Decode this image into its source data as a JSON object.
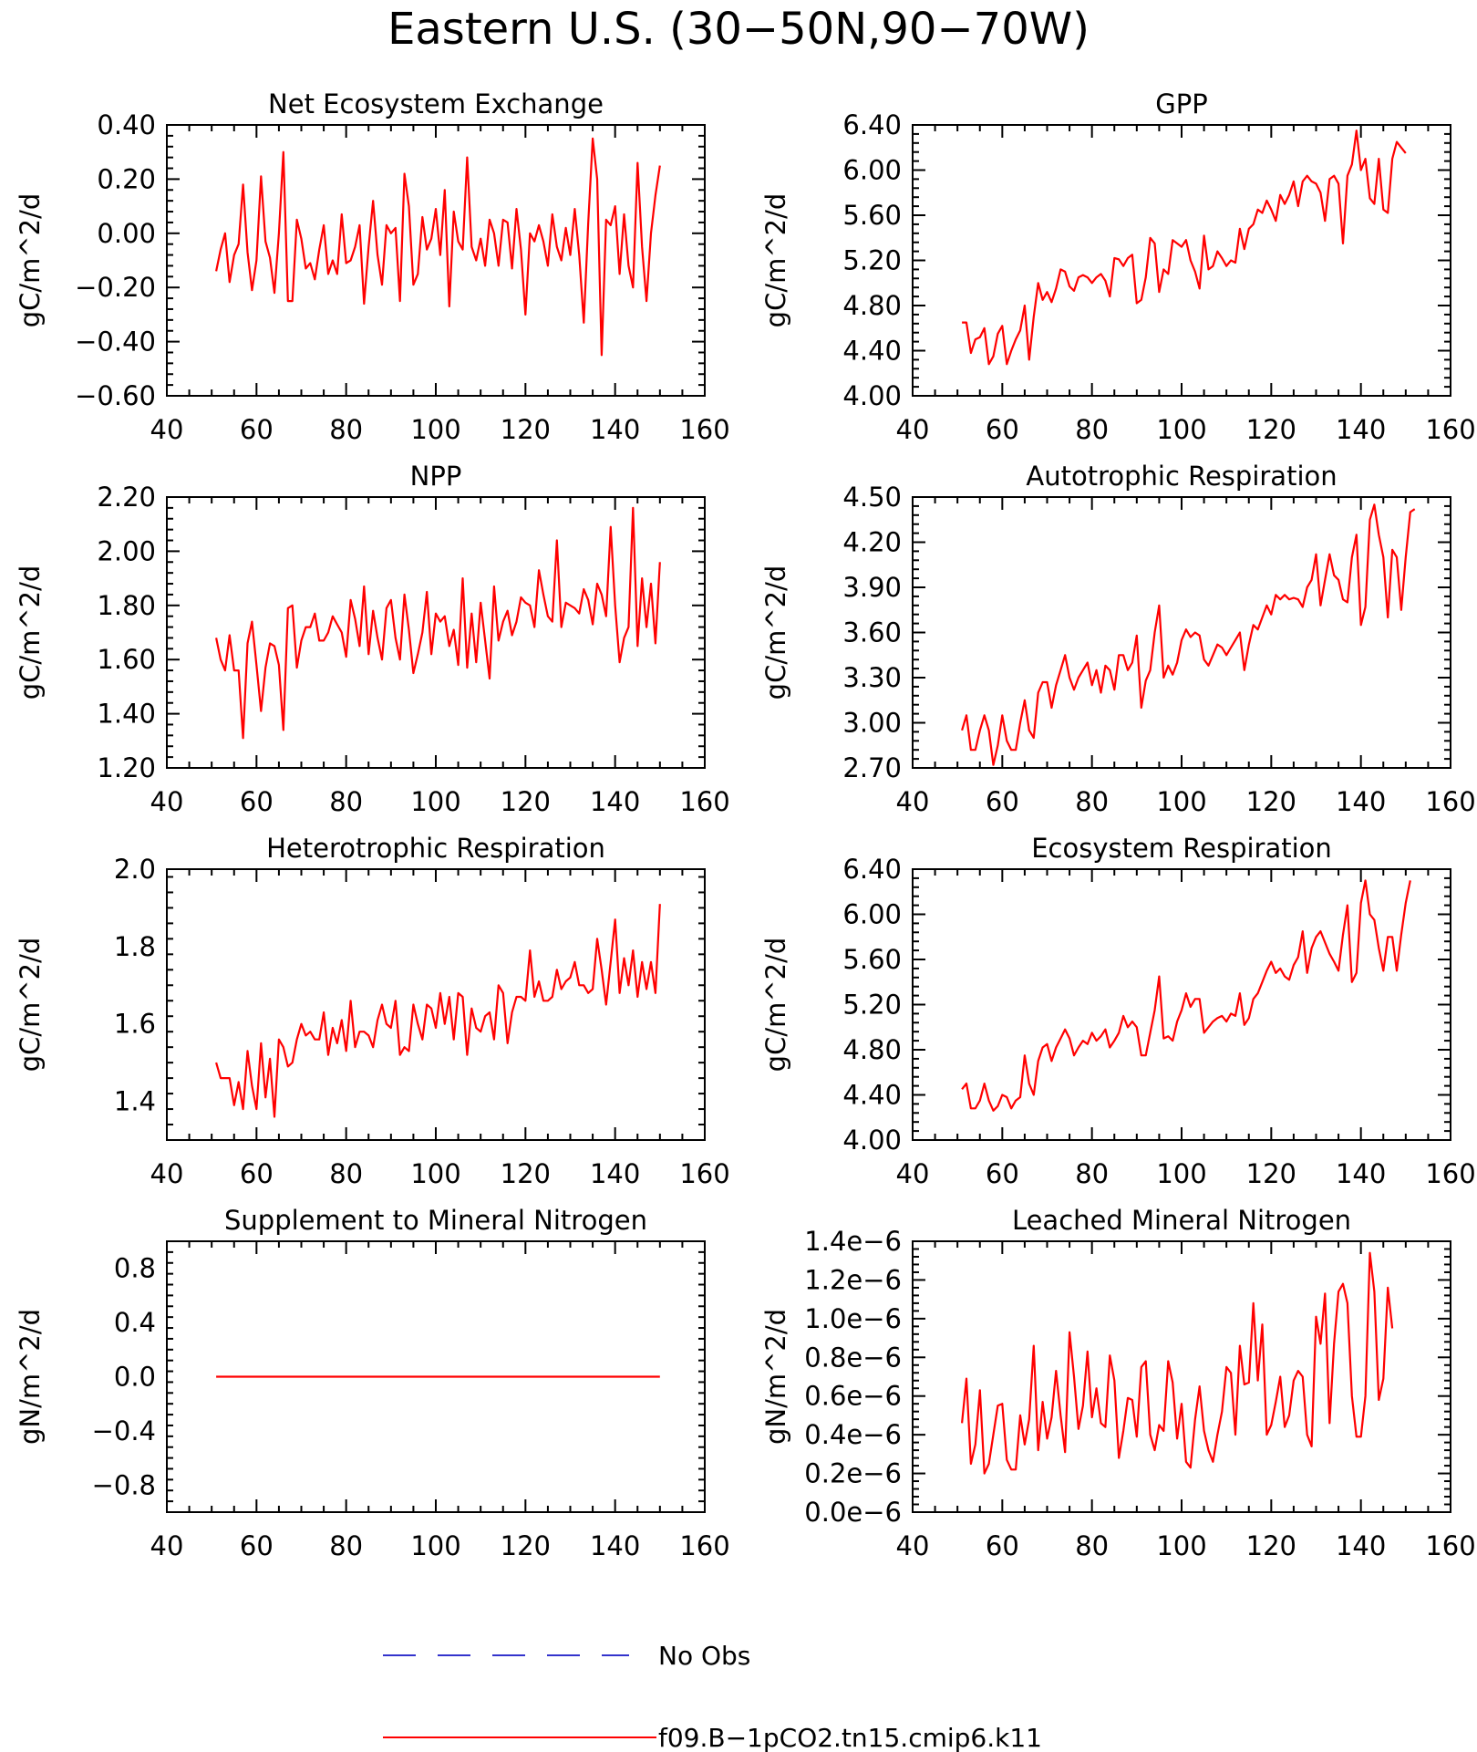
{
  "page": {
    "title": "Eastern U.S. (30-50N,90-70W)"
  },
  "colors": {
    "model_line": "#ff0000",
    "obs_line": "#3333cc",
    "axes": "#000000"
  },
  "legend": {
    "placement": "bottom-center",
    "entries": [
      {
        "label": "No Obs",
        "style": "dashed",
        "color": "#3333cc"
      },
      {
        "label": "f09.B-1pCO2.tn15.cmip6.k11",
        "style": "solid",
        "color": "#ff0000"
      }
    ]
  },
  "chart_data": [
    {
      "type": "line",
      "title": "Net Ecosystem Exchange",
      "ylabel": "gC/m^2/d",
      "xlim": [
        40,
        160
      ],
      "ylim": [
        -0.6,
        0.4
      ],
      "xticks": [
        "40",
        "60",
        "80",
        "100",
        "120",
        "140",
        "160"
      ],
      "yticks": [
        "-0.60",
        "-0.40",
        "-0.20",
        "0.00",
        "0.20",
        "0.40"
      ],
      "series": [
        {
          "x_start": 51,
          "x_step": 1,
          "values": [
            -0.14,
            -0.06,
            0.0,
            -0.18,
            -0.08,
            -0.04,
            0.18,
            -0.07,
            -0.21,
            -0.1,
            0.21,
            -0.03,
            -0.09,
            -0.22,
            0.0,
            0.3,
            -0.25,
            -0.25,
            0.05,
            -0.02,
            -0.13,
            -0.11,
            -0.17,
            -0.06,
            0.03,
            -0.15,
            -0.1,
            -0.15,
            0.07,
            -0.11,
            -0.1,
            -0.05,
            0.03,
            -0.26,
            -0.05,
            0.12,
            -0.08,
            -0.19,
            0.03,
            0.0,
            0.02,
            -0.25,
            0.22,
            0.1,
            -0.19,
            -0.15,
            0.06,
            -0.06,
            -0.02,
            0.09,
            -0.08,
            0.16,
            -0.27,
            0.08,
            -0.03,
            -0.06,
            0.28,
            -0.05,
            -0.1,
            -0.02,
            -0.12,
            0.05,
            0.0,
            -0.12,
            0.05,
            0.04,
            -0.13,
            0.09,
            -0.06,
            -0.3,
            0.0,
            -0.03,
            0.03,
            -0.03,
            -0.12,
            0.07,
            -0.05,
            -0.1,
            0.02,
            -0.08,
            0.09,
            -0.08,
            -0.33,
            0.04,
            0.35,
            0.2,
            -0.45,
            0.05,
            0.03,
            0.1,
            -0.15,
            0.07,
            -0.12,
            -0.2,
            0.26,
            -0.05,
            -0.25,
            0.0,
            0.14,
            0.25
          ]
        }
      ]
    },
    {
      "type": "line",
      "title": "GPP",
      "ylabel": "gC/m^2/d",
      "xlim": [
        40,
        160
      ],
      "ylim": [
        4.0,
        6.4
      ],
      "xticks": [
        "40",
        "60",
        "80",
        "100",
        "120",
        "140",
        "160"
      ],
      "yticks": [
        "4.00",
        "4.40",
        "4.80",
        "5.20",
        "5.60",
        "6.00",
        "6.40"
      ],
      "series": [
        {
          "x_start": 51,
          "x_step": 1,
          "values": [
            4.65,
            4.65,
            4.38,
            4.5,
            4.52,
            4.6,
            4.28,
            4.35,
            4.55,
            4.62,
            4.28,
            4.4,
            4.5,
            4.58,
            4.8,
            4.32,
            4.7,
            5.0,
            4.85,
            4.92,
            4.83,
            4.95,
            5.12,
            5.1,
            4.97,
            4.93,
            5.05,
            5.07,
            5.05,
            5.0,
            5.05,
            5.08,
            5.02,
            4.88,
            5.22,
            5.21,
            5.15,
            5.22,
            5.25,
            4.82,
            4.85,
            5.05,
            5.4,
            5.35,
            4.92,
            5.12,
            5.08,
            5.38,
            5.35,
            5.32,
            5.38,
            5.2,
            5.1,
            4.95,
            5.42,
            5.12,
            5.15,
            5.28,
            5.22,
            5.15,
            5.2,
            5.18,
            5.48,
            5.3,
            5.48,
            5.52,
            5.65,
            5.62,
            5.73,
            5.65,
            5.55,
            5.78,
            5.7,
            5.78,
            5.9,
            5.68,
            5.9,
            5.95,
            5.9,
            5.88,
            5.8,
            5.55,
            5.92,
            5.95,
            5.88,
            5.35,
            5.95,
            6.05,
            6.35,
            6.0,
            6.1,
            5.75,
            5.7,
            6.1,
            5.65,
            5.62,
            6.1,
            6.25,
            6.2,
            6.15
          ]
        }
      ]
    },
    {
      "type": "line",
      "title": "NPP",
      "ylabel": "gC/m^2/d",
      "xlim": [
        40,
        160
      ],
      "ylim": [
        1.2,
        2.2
      ],
      "xticks": [
        "40",
        "60",
        "80",
        "100",
        "120",
        "140",
        "160"
      ],
      "yticks": [
        "1.20",
        "1.40",
        "1.60",
        "1.80",
        "2.00",
        "2.20"
      ],
      "series": [
        {
          "x_start": 51,
          "x_step": 1,
          "values": [
            1.68,
            1.6,
            1.56,
            1.69,
            1.56,
            1.56,
            1.31,
            1.66,
            1.74,
            1.58,
            1.41,
            1.57,
            1.66,
            1.65,
            1.58,
            1.34,
            1.79,
            1.8,
            1.57,
            1.67,
            1.72,
            1.72,
            1.77,
            1.67,
            1.67,
            1.7,
            1.76,
            1.73,
            1.7,
            1.61,
            1.82,
            1.75,
            1.65,
            1.87,
            1.62,
            1.78,
            1.68,
            1.6,
            1.79,
            1.82,
            1.68,
            1.6,
            1.84,
            1.71,
            1.55,
            1.62,
            1.7,
            1.85,
            1.62,
            1.77,
            1.74,
            1.76,
            1.65,
            1.71,
            1.58,
            1.9,
            1.57,
            1.77,
            1.59,
            1.81,
            1.67,
            1.53,
            1.87,
            1.67,
            1.74,
            1.78,
            1.69,
            1.74,
            1.83,
            1.81,
            1.8,
            1.72,
            1.93,
            1.84,
            1.76,
            1.74,
            2.04,
            1.72,
            1.81,
            1.8,
            1.79,
            1.77,
            1.86,
            1.82,
            1.73,
            1.88,
            1.84,
            1.76,
            2.09,
            1.8,
            1.59,
            1.68,
            1.72,
            2.16,
            1.65,
            1.9,
            1.72,
            1.88,
            1.66,
            1.96
          ]
        }
      ]
    },
    {
      "type": "line",
      "title": "Autotrophic Respiration",
      "ylabel": "gC/m^2/d",
      "xlim": [
        40,
        160
      ],
      "ylim": [
        2.7,
        4.5
      ],
      "xticks": [
        "40",
        "60",
        "80",
        "100",
        "120",
        "140",
        "160"
      ],
      "yticks": [
        "2.70",
        "3.00",
        "3.30",
        "3.60",
        "3.90",
        "4.20",
        "4.50"
      ],
      "series": [
        {
          "x_start": 51,
          "x_step": 1,
          "values": [
            2.95,
            3.05,
            2.82,
            2.82,
            2.95,
            3.05,
            2.95,
            2.72,
            2.85,
            3.05,
            2.88,
            2.82,
            2.82,
            3.0,
            3.15,
            2.95,
            2.9,
            3.2,
            3.27,
            3.27,
            3.1,
            3.25,
            3.35,
            3.45,
            3.3,
            3.22,
            3.3,
            3.35,
            3.4,
            3.25,
            3.35,
            3.2,
            3.38,
            3.35,
            3.22,
            3.45,
            3.45,
            3.35,
            3.4,
            3.58,
            3.1,
            3.28,
            3.35,
            3.6,
            3.78,
            3.3,
            3.38,
            3.32,
            3.4,
            3.55,
            3.62,
            3.57,
            3.6,
            3.58,
            3.42,
            3.38,
            3.45,
            3.52,
            3.5,
            3.45,
            3.5,
            3.55,
            3.6,
            3.35,
            3.52,
            3.65,
            3.62,
            3.7,
            3.78,
            3.72,
            3.85,
            3.82,
            3.85,
            3.82,
            3.83,
            3.82,
            3.77,
            3.9,
            3.95,
            4.12,
            3.78,
            3.95,
            4.12,
            3.98,
            3.95,
            3.82,
            3.8,
            4.1,
            4.25,
            3.65,
            3.77,
            4.35,
            4.45,
            4.25,
            4.1,
            3.7,
            4.15,
            4.1,
            3.75,
            4.1,
            4.4,
            4.42
          ]
        }
      ]
    },
    {
      "type": "line",
      "title": "Heterotrophic Respiration",
      "ylabel": "gC/m^2/d",
      "xlim": [
        40,
        160
      ],
      "ylim": [
        1.3,
        2.0
      ],
      "xticks": [
        "40",
        "60",
        "80",
        "100",
        "120",
        "140",
        "160"
      ],
      "yticks": [
        "1.4",
        "1.6",
        "1.8",
        "2.0"
      ],
      "series": [
        {
          "x_start": 51,
          "x_step": 1,
          "values": [
            1.5,
            1.46,
            1.46,
            1.46,
            1.39,
            1.45,
            1.38,
            1.53,
            1.44,
            1.38,
            1.55,
            1.41,
            1.51,
            1.36,
            1.56,
            1.54,
            1.49,
            1.5,
            1.56,
            1.6,
            1.57,
            1.58,
            1.56,
            1.56,
            1.63,
            1.52,
            1.59,
            1.55,
            1.61,
            1.53,
            1.66,
            1.54,
            1.58,
            1.58,
            1.57,
            1.54,
            1.61,
            1.65,
            1.6,
            1.59,
            1.66,
            1.52,
            1.54,
            1.53,
            1.65,
            1.6,
            1.56,
            1.65,
            1.64,
            1.59,
            1.68,
            1.6,
            1.67,
            1.56,
            1.68,
            1.67,
            1.52,
            1.64,
            1.59,
            1.58,
            1.62,
            1.63,
            1.56,
            1.7,
            1.68,
            1.55,
            1.63,
            1.67,
            1.67,
            1.66,
            1.79,
            1.67,
            1.71,
            1.66,
            1.66,
            1.67,
            1.74,
            1.69,
            1.71,
            1.72,
            1.76,
            1.7,
            1.7,
            1.68,
            1.69,
            1.82,
            1.74,
            1.65,
            1.76,
            1.87,
            1.68,
            1.77,
            1.7,
            1.79,
            1.67,
            1.76,
            1.69,
            1.76,
            1.68,
            1.91
          ]
        }
      ]
    },
    {
      "type": "line",
      "title": "Ecosystem Respiration",
      "ylabel": "gC/m^2/d",
      "xlim": [
        40,
        160
      ],
      "ylim": [
        4.0,
        6.4
      ],
      "xticks": [
        "40",
        "60",
        "80",
        "100",
        "120",
        "140",
        "160"
      ],
      "yticks": [
        "4.00",
        "4.40",
        "4.80",
        "5.20",
        "5.60",
        "6.00",
        "6.40"
      ],
      "series": [
        {
          "x_start": 51,
          "x_step": 1,
          "values": [
            4.45,
            4.5,
            4.28,
            4.28,
            4.35,
            4.5,
            4.35,
            4.26,
            4.3,
            4.4,
            4.38,
            4.28,
            4.35,
            4.38,
            4.75,
            4.5,
            4.4,
            4.7,
            4.82,
            4.85,
            4.7,
            4.82,
            4.9,
            4.98,
            4.9,
            4.75,
            4.82,
            4.88,
            4.85,
            4.95,
            4.88,
            4.92,
            4.98,
            4.82,
            4.88,
            4.95,
            5.1,
            5.0,
            5.05,
            5.0,
            4.75,
            4.75,
            4.95,
            5.15,
            5.45,
            4.9,
            4.92,
            4.88,
            5.05,
            5.15,
            5.3,
            5.18,
            5.25,
            5.25,
            4.95,
            5.0,
            5.05,
            5.08,
            5.1,
            5.05,
            5.12,
            5.1,
            5.3,
            5.02,
            5.08,
            5.25,
            5.3,
            5.4,
            5.5,
            5.58,
            5.48,
            5.52,
            5.45,
            5.42,
            5.55,
            5.62,
            5.85,
            5.48,
            5.7,
            5.8,
            5.85,
            5.75,
            5.65,
            5.58,
            5.5,
            5.82,
            6.08,
            5.4,
            5.48,
            6.1,
            6.3,
            6.0,
            5.95,
            5.7,
            5.5,
            5.8,
            5.8,
            5.5,
            5.82,
            6.1,
            6.3
          ]
        }
      ]
    },
    {
      "type": "line",
      "title": "Supplement to Mineral Nitrogen",
      "ylabel": "gN/m^2/d",
      "xlim": [
        40,
        160
      ],
      "ylim": [
        -1.0,
        1.0
      ],
      "xticks": [
        "40",
        "60",
        "80",
        "100",
        "120",
        "140",
        "160"
      ],
      "yticks": [
        "-0.8",
        "-0.4",
        "0.0",
        "0.4",
        "0.8"
      ],
      "series": [
        {
          "x_start": 51,
          "x_step": 99,
          "values": [
            0.0,
            0.0
          ]
        }
      ]
    },
    {
      "type": "line",
      "title": "Leached Mineral Nitrogen",
      "ylabel": "gN/m^2/d",
      "xlim": [
        40,
        160
      ],
      "ylim": [
        0.0,
        1.4e-06
      ],
      "xticks": [
        "40",
        "60",
        "80",
        "100",
        "120",
        "140",
        "160"
      ],
      "yticks": [
        "0.0e-6",
        "0.2e-6",
        "0.4e-6",
        "0.6e-6",
        "0.8e-6",
        "1.0e-6",
        "1.2e-6",
        "1.4e-6"
      ],
      "series": [
        {
          "x_start": 51,
          "x_step": 1,
          "values": [
            4.6e-07,
            6.9e-07,
            2.5e-07,
            3.5e-07,
            6.3e-07,
            2e-07,
            2.5e-07,
            4e-07,
            5.5e-07,
            5.6e-07,
            2.7e-07,
            2.2e-07,
            2.2e-07,
            5e-07,
            3.5e-07,
            4.8e-07,
            8.6e-07,
            3.2e-07,
            5.7e-07,
            3.8e-07,
            4.9e-07,
            7.3e-07,
            5e-07,
            3.1e-07,
            9.3e-07,
            7e-07,
            4.3e-07,
            5.5e-07,
            8.3e-07,
            4.9e-07,
            6.4e-07,
            4.6e-07,
            4.4e-07,
            8.1e-07,
            6.8e-07,
            2.8e-07,
            4.2e-07,
            5.9e-07,
            5.8e-07,
            3.9e-07,
            7.5e-07,
            7.8e-07,
            4e-07,
            3.2e-07,
            4.5e-07,
            4.2e-07,
            7.8e-07,
            6.7e-07,
            3.8e-07,
            5.6e-07,
            2.6e-07,
            2.3e-07,
            4.8e-07,
            6.5e-07,
            4.2e-07,
            3.2e-07,
            2.6e-07,
            4e-07,
            5.2e-07,
            7.5e-07,
            7.2e-07,
            4e-07,
            8.6e-07,
            6.6e-07,
            6.7e-07,
            1.08e-06,
            6.8e-07,
            9.7e-07,
            4e-07,
            4.5e-07,
            5.7e-07,
            7e-07,
            4.4e-07,
            5e-07,
            6.8e-07,
            7.3e-07,
            7e-07,
            4e-07,
            3.4e-07,
            1.01e-06,
            8.7e-07,
            1.13e-06,
            4.6e-07,
            8.7e-07,
            1.14e-06,
            1.18e-06,
            1.08e-06,
            6e-07,
            3.9e-07,
            3.9e-07,
            6e-07,
            1.34e-06,
            1.14e-06,
            5.8e-07,
            6.9e-07,
            1.16e-06,
            9.5e-07
          ]
        }
      ]
    }
  ]
}
